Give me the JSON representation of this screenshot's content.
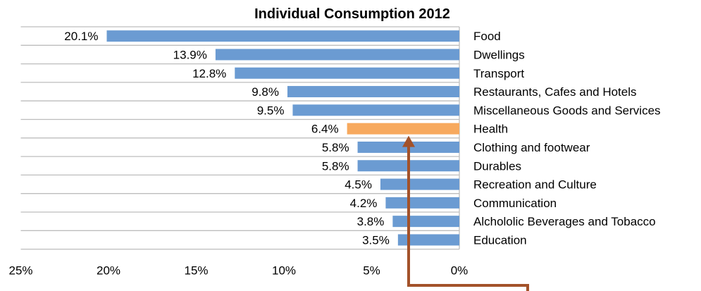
{
  "chart_data": {
    "type": "bar",
    "orientation": "horizontal",
    "title": "Individual Consumption 2012",
    "xlabel": "",
    "ylabel": "",
    "xlim": [
      0,
      25
    ],
    "x_reversed": true,
    "grid": true,
    "categories": [
      "Food",
      "Dwellings",
      "Transport",
      "Restaurants, Cafes and Hotels",
      "Miscellaneous Goods and Services",
      "Health",
      "Clothing and footwear",
      "Durables",
      "Recreation and Culture",
      "Communication",
      "Alchololic Beverages and Tobacco",
      "Education"
    ],
    "values": [
      20.1,
      13.9,
      12.8,
      9.8,
      9.5,
      6.4,
      5.8,
      5.8,
      4.5,
      4.2,
      3.8,
      3.5
    ],
    "value_labels": [
      "20.1%",
      "13.9%",
      "12.8%",
      "9.8%",
      "9.5%",
      "6.4%",
      "5.8%",
      "5.8%",
      "4.5%",
      "4.2%",
      "3.8%",
      "3.5%"
    ],
    "tick_labels": [
      "25%",
      "20%",
      "15%",
      "10%",
      "5%",
      "0%"
    ],
    "tick_values": [
      25,
      20,
      15,
      10,
      5,
      0
    ],
    "colors": {
      "default": "#6b9bd2",
      "highlight": "#f7a95e",
      "arrow": "#a3522a"
    },
    "highlight_index": 5
  }
}
